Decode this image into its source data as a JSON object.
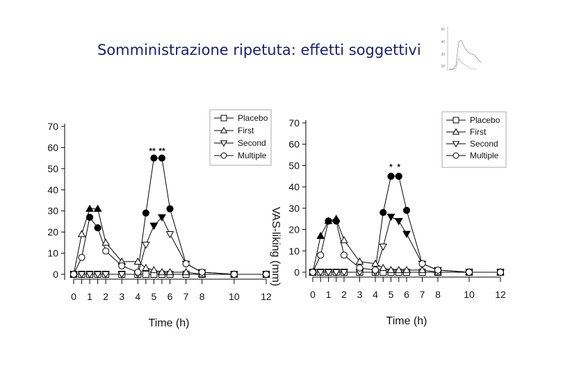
{
  "slide": {
    "title": "Somministrazione ripetuta: effetti soggettivi"
  },
  "thumbnail": {
    "y_ticks": [
      "60",
      "40",
      "30",
      "20"
    ]
  },
  "chart_data": [
    {
      "type": "line",
      "title": "",
      "xlabel": "Time (h)",
      "ylabel": "VAS-liking (mm)",
      "xlim": [
        0,
        12
      ],
      "ylim": [
        0,
        70
      ],
      "x_ticks": [
        0,
        1,
        2,
        3,
        4,
        5,
        6,
        7,
        8,
        10,
        12
      ],
      "y_ticks": [
        0,
        10,
        20,
        30,
        40,
        50,
        60,
        70
      ],
      "legend": "top-right",
      "annotations": [
        {
          "text": "**",
          "x": 4.9,
          "y": 57
        },
        {
          "text": "**",
          "x": 5.5,
          "y": 57
        }
      ],
      "series": [
        {
          "name": "Placebo",
          "marker": "square",
          "filled": false,
          "points": [
            [
              0,
              0
            ],
            [
              0.5,
              0
            ],
            [
              1,
              0
            ],
            [
              1.5,
              0
            ],
            [
              2,
              0
            ],
            [
              3,
              0
            ],
            [
              4,
              0
            ],
            [
              4.5,
              0
            ],
            [
              5,
              0
            ],
            [
              5.5,
              0
            ],
            [
              6,
              0
            ],
            [
              7,
              0
            ],
            [
              8,
              0
            ],
            [
              10,
              0
            ],
            [
              12,
              0
            ]
          ]
        },
        {
          "name": "First",
          "marker": "triangle-up",
          "filled": false,
          "points": [
            [
              0,
              0
            ],
            [
              0.5,
              19
            ],
            [
              1,
              31
            ],
            [
              1.5,
              31
            ],
            [
              2,
              15
            ],
            [
              3,
              6
            ],
            [
              4,
              6
            ],
            [
              4.5,
              3
            ],
            [
              5,
              2
            ],
            [
              5.5,
              1
            ],
            [
              6,
              1
            ],
            [
              7,
              1
            ],
            [
              8,
              0
            ],
            [
              10,
              0
            ],
            [
              12,
              0
            ]
          ]
        },
        {
          "name": "First (filled)",
          "marker": "triangle-up",
          "filled": true,
          "hidden_in_legend": true,
          "points": [
            [
              1,
              31
            ],
            [
              1.5,
              31
            ]
          ]
        },
        {
          "name": "Second",
          "marker": "triangle-down",
          "filled": false,
          "points": [
            [
              0,
              0
            ],
            [
              0.5,
              0
            ],
            [
              1,
              0
            ],
            [
              1.5,
              0
            ],
            [
              2,
              0
            ],
            [
              3,
              0
            ],
            [
              4,
              0
            ],
            [
              4.5,
              14
            ],
            [
              5,
              23
            ],
            [
              5.5,
              27
            ],
            [
              6,
              19
            ],
            [
              7,
              5
            ],
            [
              8,
              1
            ],
            [
              10,
              0
            ],
            [
              12,
              0
            ]
          ]
        },
        {
          "name": "Second (filled)",
          "marker": "triangle-down",
          "filled": true,
          "hidden_in_legend": true,
          "points": [
            [
              5,
              23
            ],
            [
              5.5,
              27
            ]
          ]
        },
        {
          "name": "Multiple",
          "marker": "circle",
          "filled": false,
          "points": [
            [
              0,
              0
            ],
            [
              0.5,
              8
            ],
            [
              1,
              27
            ],
            [
              1.5,
              22
            ],
            [
              2,
              11
            ],
            [
              3,
              4
            ],
            [
              4,
              1
            ],
            [
              4.5,
              29
            ],
            [
              5,
              55
            ],
            [
              5.5,
              55
            ],
            [
              6,
              31
            ],
            [
              7,
              5
            ],
            [
              8,
              1
            ],
            [
              10,
              0
            ],
            [
              12,
              0
            ]
          ]
        },
        {
          "name": "Multiple (filled)",
          "marker": "circle",
          "filled": true,
          "hidden_in_legend": true,
          "points": [
            [
              1,
              27
            ],
            [
              1.5,
              22
            ],
            [
              4.5,
              29
            ],
            [
              5,
              55
            ],
            [
              5.5,
              55
            ],
            [
              6,
              31
            ]
          ]
        }
      ]
    },
    {
      "type": "line",
      "title": "",
      "xlabel": "Time (h)",
      "ylabel": "",
      "xlim": [
        0,
        12
      ],
      "ylim": [
        0,
        70
      ],
      "x_ticks": [
        0,
        1,
        2,
        3,
        4,
        5,
        6,
        7,
        8,
        10,
        12
      ],
      "y_ticks": [
        0,
        10,
        20,
        30,
        40,
        50,
        60,
        70
      ],
      "legend": "top-right",
      "annotations": [
        {
          "text": "*",
          "x": 5,
          "y": 48
        },
        {
          "text": "*",
          "x": 5.5,
          "y": 48
        }
      ],
      "series": [
        {
          "name": "Placebo",
          "marker": "square",
          "filled": false,
          "points": [
            [
              0,
              0
            ],
            [
              0.5,
              0
            ],
            [
              1,
              0
            ],
            [
              1.5,
              0
            ],
            [
              2,
              0
            ],
            [
              3,
              0
            ],
            [
              4,
              0
            ],
            [
              4.5,
              0
            ],
            [
              5,
              0
            ],
            [
              5.5,
              0
            ],
            [
              6,
              0
            ],
            [
              7,
              0
            ],
            [
              8,
              0
            ],
            [
              10,
              0
            ],
            [
              12,
              0
            ]
          ]
        },
        {
          "name": "First",
          "marker": "triangle-up",
          "filled": false,
          "points": [
            [
              0,
              0
            ],
            [
              0.5,
              17
            ],
            [
              1,
              24
            ],
            [
              1.5,
              25
            ],
            [
              2,
              15
            ],
            [
              3,
              5
            ],
            [
              4,
              4
            ],
            [
              4.5,
              2
            ],
            [
              5,
              1
            ],
            [
              5.5,
              1
            ],
            [
              6,
              1
            ],
            [
              7,
              1
            ],
            [
              8,
              0
            ],
            [
              10,
              0
            ],
            [
              12,
              0
            ]
          ]
        },
        {
          "name": "First (filled)",
          "marker": "triangle-up",
          "filled": true,
          "hidden_in_legend": true,
          "points": [
            [
              0.5,
              17
            ],
            [
              1,
              24
            ],
            [
              1.5,
              25
            ]
          ]
        },
        {
          "name": "Second",
          "marker": "triangle-down",
          "filled": false,
          "points": [
            [
              0,
              0
            ],
            [
              0.5,
              0
            ],
            [
              1,
              0
            ],
            [
              1.5,
              0
            ],
            [
              2,
              0
            ],
            [
              3,
              0
            ],
            [
              4,
              0
            ],
            [
              4.5,
              12
            ],
            [
              5,
              26
            ],
            [
              5.5,
              24
            ],
            [
              6,
              18
            ],
            [
              7,
              4
            ],
            [
              8,
              1
            ],
            [
              10,
              0
            ],
            [
              12,
              0
            ]
          ]
        },
        {
          "name": "Second (filled)",
          "marker": "triangle-down",
          "filled": true,
          "hidden_in_legend": true,
          "points": [
            [
              5,
              26
            ],
            [
              5.5,
              24
            ],
            [
              6,
              18
            ]
          ]
        },
        {
          "name": "Multiple",
          "marker": "circle",
          "filled": false,
          "points": [
            [
              0,
              0
            ],
            [
              0.5,
              8
            ],
            [
              1,
              24
            ],
            [
              1.5,
              24
            ],
            [
              2,
              8
            ],
            [
              3,
              2
            ],
            [
              4,
              1
            ],
            [
              4.5,
              28
            ],
            [
              5,
              45
            ],
            [
              5.5,
              45
            ],
            [
              6,
              29
            ],
            [
              7,
              4
            ],
            [
              8,
              1
            ],
            [
              10,
              0
            ],
            [
              12,
              0
            ]
          ]
        },
        {
          "name": "Multiple (filled)",
          "marker": "circle",
          "filled": true,
          "hidden_in_legend": true,
          "points": [
            [
              1,
              24
            ],
            [
              1.5,
              24
            ],
            [
              4.5,
              28
            ],
            [
              5,
              45
            ],
            [
              5.5,
              45
            ],
            [
              6,
              29
            ]
          ]
        }
      ]
    }
  ]
}
